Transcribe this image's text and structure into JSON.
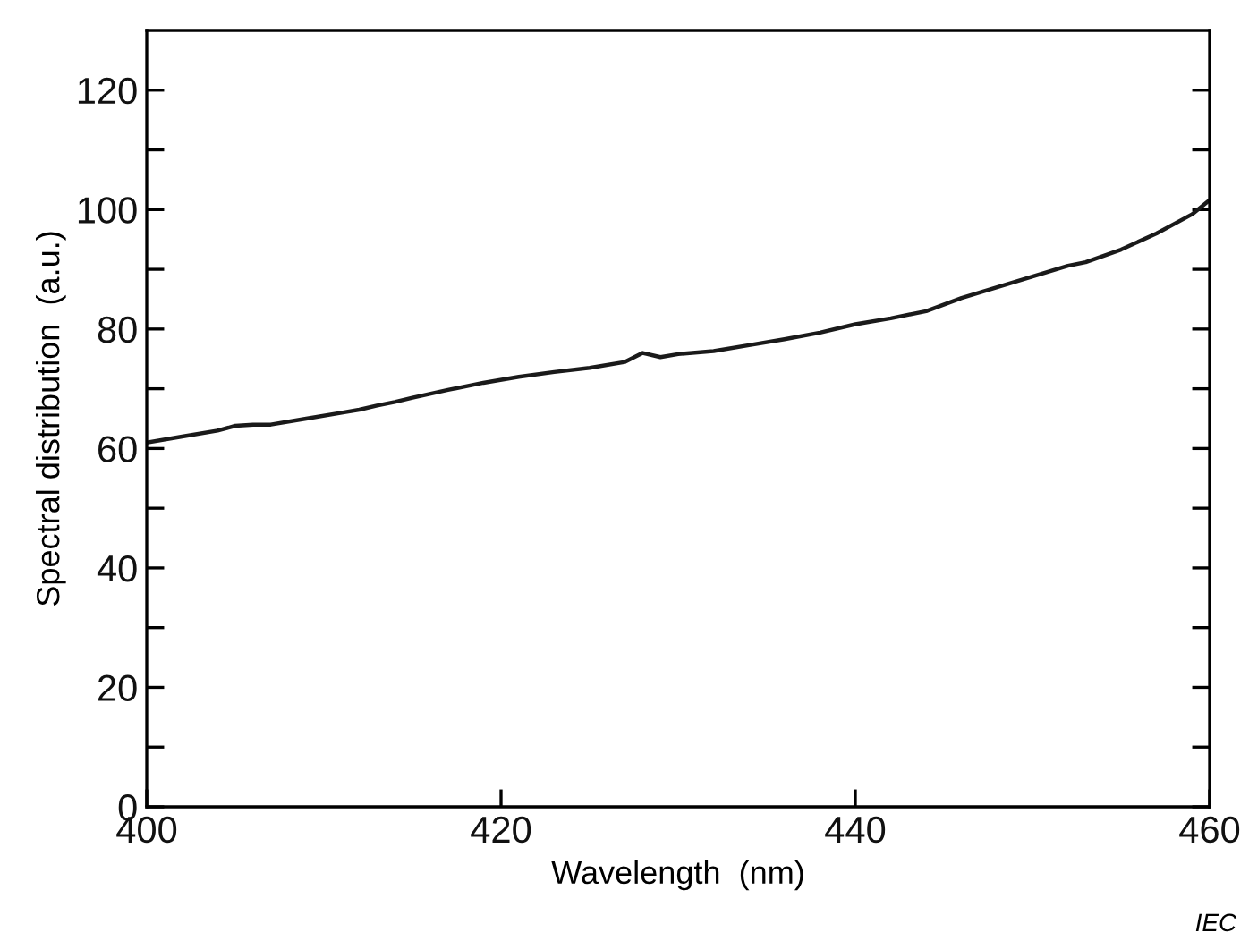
{
  "chart_data": {
    "type": "line",
    "xlabel": "Wavelength  (nm)",
    "ylabel": "Spectral distribution  (a.u.)",
    "x": [
      400,
      402,
      404,
      405,
      406,
      407,
      409,
      411,
      412,
      413,
      414,
      415,
      417,
      419,
      421,
      423,
      425,
      427,
      428,
      429,
      430,
      432,
      434,
      436,
      438,
      440,
      442,
      444,
      446,
      448,
      450,
      452,
      453,
      455,
      457,
      459,
      460
    ],
    "series": [
      {
        "color": "#1a1a1a",
        "values": [
          61,
          62,
          63,
          63.8,
          64,
          64,
          65,
          66,
          66.5,
          67.2,
          67.8,
          68.5,
          69.8,
          71,
          72,
          72.8,
          73.5,
          74.5,
          76,
          75.3,
          75.8,
          76.3,
          77.3,
          78.3,
          79.4,
          80.8,
          81.8,
          83,
          85.2,
          87,
          88.8,
          90.6,
          91.2,
          93.3,
          96,
          99.2,
          101.6
        ]
      }
    ],
    "xlim": [
      400,
      460
    ],
    "ylim": [
      0,
      130
    ],
    "xticks": [
      400,
      420,
      440,
      460
    ],
    "yticks": [
      0,
      {
        "value": 10,
        "label": null
      },
      20,
      {
        "value": 30,
        "label": null
      },
      40,
      {
        "value": 50,
        "label": null
      },
      60,
      {
        "value": 70,
        "label": null
      },
      80,
      {
        "value": 90,
        "label": null
      },
      100,
      {
        "value": 110,
        "label": null
      },
      120
    ],
    "grid": false,
    "legend": false,
    "marker": "none",
    "line_style": "solid",
    "annotations": [
      "IEC"
    ]
  }
}
